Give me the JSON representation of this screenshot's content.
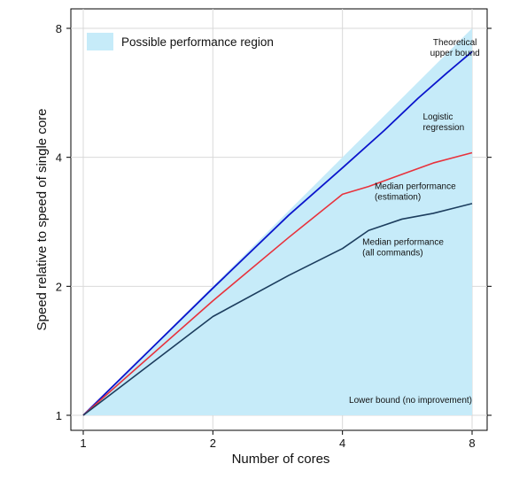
{
  "chart_data": {
    "type": "area",
    "xlabel": "Number of cores",
    "ylabel": "Speed relative to speed of single core",
    "xscale": "log2",
    "yscale": "log2",
    "xlim": [
      1,
      8
    ],
    "ylim": [
      1,
      8
    ],
    "x_ticks": [
      1,
      2,
      4,
      8
    ],
    "y_ticks": [
      1,
      2,
      4,
      8
    ],
    "grid": true,
    "legend": {
      "position": "top-left",
      "label": "Possible performance region",
      "color": "#c6ebf9"
    },
    "colors": {
      "region": "#c6ebf9",
      "logistic": "#0a14cc",
      "median_estimation": "#e8323c",
      "median_all": "#1c3d5e",
      "grid": "#d9d9d9"
    },
    "region": {
      "upper": [
        [
          1,
          1
        ],
        [
          8,
          8
        ]
      ],
      "lower": [
        [
          1,
          1
        ],
        [
          8,
          1
        ]
      ]
    },
    "series": [
      {
        "key": "logistic",
        "x": [
          1,
          2,
          3,
          4,
          5,
          6,
          7,
          8
        ],
        "y": [
          1,
          1.98,
          2.93,
          3.78,
          4.62,
          5.5,
          6.3,
          7.06
        ]
      },
      {
        "key": "median_estimation",
        "x": [
          1,
          2,
          3,
          4,
          4.6,
          5.5,
          6.5,
          8
        ],
        "y": [
          1,
          1.85,
          2.6,
          3.28,
          3.42,
          3.65,
          3.88,
          4.1
        ]
      },
      {
        "key": "median_all",
        "x": [
          1,
          2,
          3,
          4,
          4.6,
          5.5,
          6.5,
          8
        ],
        "y": [
          1,
          1.7,
          2.12,
          2.45,
          2.7,
          2.87,
          2.96,
          3.12
        ]
      }
    ],
    "annotations": [
      {
        "lines": [
          "Theoretical",
          "upper bound"
        ],
        "x": 7.3,
        "y": 7.3,
        "anchor": "middle"
      },
      {
        "lines": [
          "Logistic",
          "regression"
        ],
        "x": 6.15,
        "y": 4.9,
        "anchor": "start"
      },
      {
        "lines": [
          "Median performance",
          "(estimation)"
        ],
        "x": 4.75,
        "y": 3.37,
        "anchor": "start"
      },
      {
        "lines": [
          "Median performance",
          "(all commands)"
        ],
        "x": 4.45,
        "y": 2.5,
        "anchor": "start"
      },
      {
        "lines": [
          "Lower bound (no improvement)"
        ],
        "x": 8.0,
        "y": 1.07,
        "anchor": "end"
      }
    ]
  }
}
